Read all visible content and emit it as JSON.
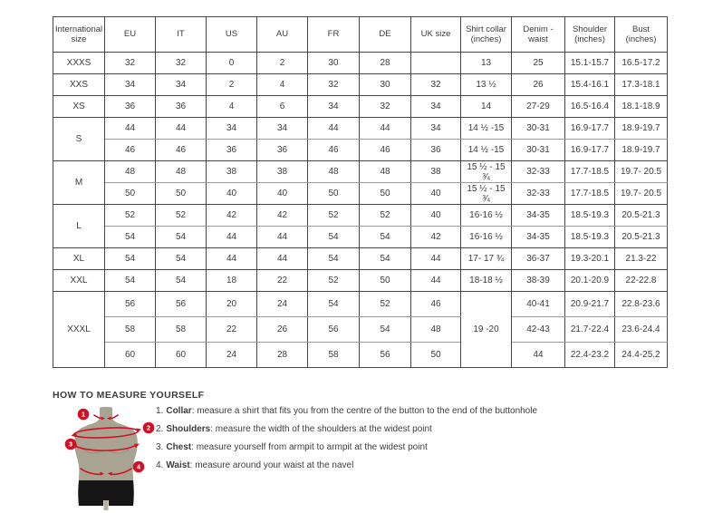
{
  "size_table": {
    "columns": [
      "International size",
      "EU",
      "IT",
      "US",
      "AU",
      "FR",
      "DE",
      "UK size",
      "Shirt collar (inches)",
      "Denim - waist",
      "Shoulder (inches)",
      "Bust (inches)"
    ],
    "groups": [
      {
        "label": "XXXS",
        "rows": [
          [
            "32",
            "32",
            "0",
            "2",
            "30",
            "28",
            "",
            "13",
            "25",
            "15.1-15.7",
            "16.5-17.2"
          ]
        ]
      },
      {
        "label": "XXS",
        "rows": [
          [
            "34",
            "34",
            "2",
            "4",
            "32",
            "30",
            "32",
            "13 ½",
            "26",
            "15.4-16.1",
            "17.3-18.1"
          ]
        ]
      },
      {
        "label": "XS",
        "rows": [
          [
            "36",
            "36",
            "4",
            "6",
            "34",
            "32",
            "34",
            "14",
            "27-29",
            "16.5-16.4",
            "18.1-18.9"
          ]
        ]
      },
      {
        "label": "S",
        "rows": [
          [
            "44",
            "44",
            "34",
            "34",
            "44",
            "44",
            "34",
            "14 ½ -15",
            "30-31",
            "16.9-17.7",
            "18.9-19.7"
          ],
          [
            "46",
            "46",
            "36",
            "36",
            "46",
            "46",
            "36",
            "14 ½ -15",
            "30-31",
            "16.9-17.7",
            "18.9-19.7"
          ]
        ]
      },
      {
        "label": "M",
        "rows": [
          [
            "48",
            "48",
            "38",
            "38",
            "48",
            "48",
            "38",
            "15 ½ - 15 ¾",
            "32-33",
            "17.7-18.5",
            "19.7- 20.5"
          ],
          [
            "50",
            "50",
            "40",
            "40",
            "50",
            "50",
            "40",
            "15 ½ - 15 ¾",
            "32-33",
            "17.7-18.5",
            "19.7- 20.5"
          ]
        ]
      },
      {
        "label": "L",
        "rows": [
          [
            "52",
            "52",
            "42",
            "42",
            "52",
            "52",
            "40",
            "16-16 ½",
            "34-35",
            "18.5-19.3",
            "20.5-21.3"
          ],
          [
            "54",
            "54",
            "44",
            "44",
            "54",
            "54",
            "42",
            "16-16 ½",
            "34-35",
            "18.5-19.3",
            "20.5-21.3"
          ]
        ]
      },
      {
        "label": "XL",
        "rows": [
          [
            "54",
            "54",
            "44",
            "44",
            "54",
            "54",
            "44",
            "17- 17 ¾",
            "36-37",
            "19.3-20.1",
            "21.3-22"
          ]
        ]
      },
      {
        "label": "XXL",
        "rows": [
          [
            "54",
            "54",
            "18",
            "22",
            "52",
            "50",
            "44",
            "18-18 ½",
            "38-39",
            "20.1-20.9",
            "22-22.8"
          ]
        ]
      },
      {
        "label": "XXXL",
        "tall": true,
        "collar": "19 -20",
        "rows": [
          [
            "56",
            "56",
            "20",
            "24",
            "54",
            "52",
            "46",
            "40-41",
            "20.9-21.7",
            "22.8-23.6"
          ],
          [
            "58",
            "58",
            "22",
            "26",
            "56",
            "54",
            "48",
            "42-43",
            "21.7-22.4",
            "23.6-24.4"
          ],
          [
            "60",
            "60",
            "24",
            "28",
            "58",
            "56",
            "50",
            "44",
            "22.4-23.2",
            "24.4-25.2"
          ]
        ]
      }
    ]
  },
  "measure": {
    "heading": "HOW TO MEASURE YOURSELF",
    "items": [
      {
        "num": "1.",
        "label": "Collar",
        "text": ": measure a shirt that fits you from the centre of the button to the end of the buttonhole"
      },
      {
        "num": "2.",
        "label": "Shoulders",
        "text": ": measure the width of the shoulders at the widest point"
      },
      {
        "num": "3.",
        "label": "Chest",
        "text": ": measure yourself from armpit to armpit at the widest point"
      },
      {
        "num": "4.",
        "label": "Waist",
        "text": ": measure around your waist at the navel"
      }
    ],
    "figure": {
      "markers": [
        "1",
        "2",
        "3",
        "4"
      ],
      "body_color": "#a9a391",
      "shorts_color": "#161616",
      "accent_color": "#cf1126"
    }
  }
}
